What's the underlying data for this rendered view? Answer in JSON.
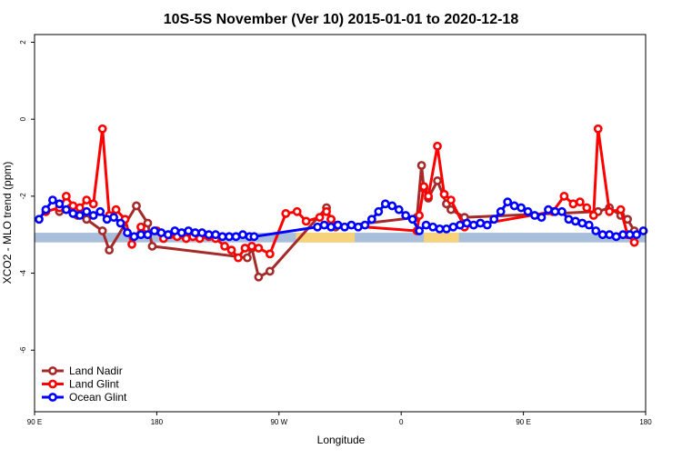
{
  "chart_data": {
    "type": "line",
    "title": "10S-5S November (Ver 10)   2015-01-01 to 2020-12-18",
    "xlabel": "Longitude",
    "ylabel": "XCO2 - MLO trend (ppm)",
    "xlim": [
      -90,
      180
    ],
    "ylim": [
      -7.6,
      2.2
    ],
    "x_ticks": [
      {
        "value": -90,
        "label": "90 E"
      },
      {
        "value": -36,
        "label": "180"
      },
      {
        "value": 18,
        "label": "90 W"
      },
      {
        "value": 72,
        "label": "0"
      },
      {
        "value": 126,
        "label": "90 E"
      },
      {
        "value": 180,
        "label": "180"
      }
    ],
    "y_ticks": [
      {
        "value": 2,
        "label": "2"
      },
      {
        "value": 0,
        "label": "0"
      },
      {
        "value": -2,
        "label": "-2"
      },
      {
        "value": -4,
        "label": "-4"
      },
      {
        "value": -6,
        "label": "-6"
      }
    ],
    "land_band": {
      "y_low": -3.2,
      "y_high": -2.95,
      "ocean_color": "#a9bedb",
      "land_color": "#f7d27a",
      "land_ranges": [
        [
          25.5,
          51.5
        ],
        [
          82,
          97.5
        ]
      ]
    },
    "series": [
      {
        "name": "Land Nadir",
        "color": "#a52a2a",
        "x": [
          -79,
          -74,
          -71,
          -67,
          -60,
          -57,
          -45,
          -40,
          -38,
          4,
          6,
          9,
          14,
          39,
          41,
          43,
          79,
          81,
          82,
          84,
          88,
          92,
          94,
          100,
          159,
          164,
          169,
          172,
          175
        ],
        "y": [
          -2.4,
          -2.3,
          -2.5,
          -2.6,
          -2.9,
          -3.4,
          -2.25,
          -2.7,
          -3.3,
          -3.6,
          -3.35,
          -4.1,
          -3.95,
          -2.3,
          -2.6,
          -2.8,
          -2.55,
          -1.2,
          -1.8,
          -2.05,
          -1.6,
          -2.2,
          -2.35,
          -2.55,
          -2.4,
          -2.3,
          -2.5,
          -2.6,
          -2.9
        ]
      },
      {
        "name": "Land Glint",
        "color": "#ff0000",
        "x": [
          -85,
          -79,
          -76,
          -73,
          -70,
          -67,
          -64,
          -60,
          -57,
          -54,
          -50,
          -47,
          -43,
          -40,
          -36,
          -33,
          -30,
          -27,
          -23,
          -20,
          -17,
          -13,
          -10,
          -6,
          -3,
          0,
          3,
          6,
          9,
          14,
          21,
          26,
          30,
          36,
          39,
          41,
          44,
          79,
          80,
          82,
          84,
          88,
          91,
          94,
          100,
          139,
          144,
          148,
          151,
          154,
          157,
          159,
          164,
          169,
          172,
          175
        ],
        "y": [
          -2.4,
          -2.3,
          -2.0,
          -2.25,
          -2.3,
          -2.1,
          -2.2,
          -0.25,
          -2.5,
          -2.35,
          -2.6,
          -3.25,
          -2.8,
          -3.0,
          -2.9,
          -3.1,
          -3.0,
          -3.05,
          -3.1,
          -3.05,
          -3.1,
          -3.05,
          -3.1,
          -3.3,
          -3.4,
          -3.6,
          -3.35,
          -3.3,
          -3.35,
          -3.5,
          -2.45,
          -2.4,
          -2.65,
          -2.55,
          -2.4,
          -2.6,
          -2.75,
          -2.9,
          -2.5,
          -1.75,
          -2.0,
          -0.7,
          -1.95,
          -2.1,
          -2.8,
          -2.4,
          -2.0,
          -2.2,
          -2.15,
          -2.3,
          -2.5,
          -0.25,
          -2.4,
          -2.35,
          -3.0,
          -3.2
        ]
      },
      {
        "name": "Ocean Glint",
        "color": "#0000ff",
        "x": [
          -88,
          -85,
          -82,
          -79,
          -76,
          -73,
          -70,
          -67,
          -64,
          -61,
          -58,
          -55,
          -52,
          -49,
          -46,
          -43,
          -40,
          -37,
          -34,
          -31,
          -28,
          -25,
          -22,
          -19,
          -16,
          -13,
          -10,
          -7,
          -4,
          -1,
          2,
          5,
          7,
          35,
          38,
          41,
          44,
          47,
          50,
          53,
          56,
          59,
          62,
          65,
          68,
          71,
          74,
          77,
          80,
          83,
          86,
          89,
          92,
          95,
          98,
          101,
          104,
          107,
          110,
          113,
          116,
          119,
          122,
          125,
          128,
          131,
          134,
          137,
          140,
          143,
          146,
          149,
          152,
          155,
          158,
          161,
          164,
          167,
          170,
          173,
          176,
          179
        ],
        "y": [
          -2.6,
          -2.35,
          -2.1,
          -2.2,
          -2.35,
          -2.45,
          -2.5,
          -2.4,
          -2.5,
          -2.4,
          -2.6,
          -2.55,
          -2.7,
          -2.95,
          -3.05,
          -3.0,
          -3.0,
          -2.9,
          -2.95,
          -3.0,
          -2.9,
          -2.95,
          -2.9,
          -2.95,
          -2.95,
          -3.0,
          -3.0,
          -3.05,
          -3.05,
          -3.05,
          -3.0,
          -3.05,
          -3.05,
          -2.8,
          -2.75,
          -2.8,
          -2.75,
          -2.8,
          -2.75,
          -2.8,
          -2.75,
          -2.6,
          -2.4,
          -2.2,
          -2.25,
          -2.35,
          -2.5,
          -2.6,
          -2.9,
          -2.75,
          -2.8,
          -2.85,
          -2.85,
          -2.8,
          -2.75,
          -2.7,
          -2.75,
          -2.7,
          -2.75,
          -2.6,
          -2.4,
          -2.15,
          -2.25,
          -2.3,
          -2.4,
          -2.5,
          -2.55,
          -2.35,
          -2.4,
          -2.4,
          -2.6,
          -2.65,
          -2.7,
          -2.75,
          -2.9,
          -3.0,
          -3.0,
          -3.05,
          -3.0,
          -3.0,
          -3.0,
          -2.9
        ]
      }
    ],
    "legend": {
      "position": "bottom-left",
      "entries": [
        "Land Nadir",
        "Land Glint",
        "Ocean Glint"
      ]
    }
  }
}
